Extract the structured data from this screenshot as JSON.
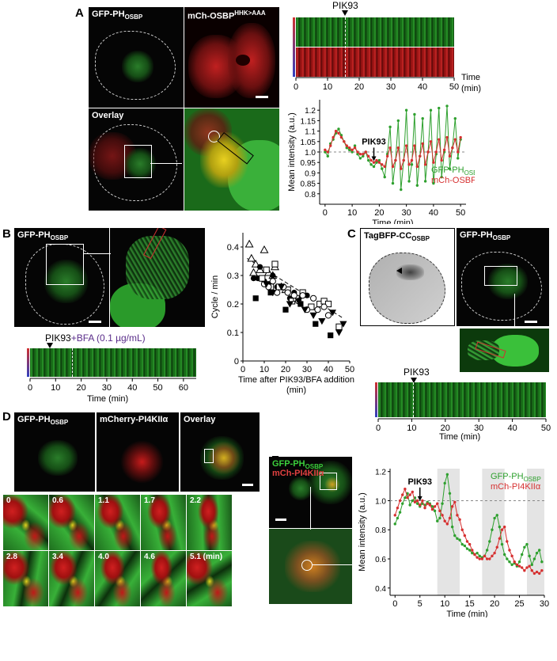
{
  "panels": {
    "A": {
      "letter": "A",
      "img_labels": {
        "gfp": "GFP-PH",
        "gfp_sub": "OSBP",
        "mch": "mCh-OSBP",
        "mch_sup": "HHK>AAA",
        "overlay": "Overlay"
      },
      "kymo_marker": "PIK93",
      "kymo_xlabel_1": "Time",
      "kymo_xlabel_2": "(min)",
      "kymo_ticks": [
        "0",
        "10",
        "20",
        "30",
        "40",
        "50"
      ]
    },
    "B": {
      "letter": "B",
      "img_label": "GFP-PH",
      "img_label_sub": "OSBP",
      "kymo_marker": "PIK93",
      "kymo_marker_extra": "+BFA (0.1 µg/mL)",
      "kymo_xlabel": "Time (min)",
      "kymo_ticks": [
        "0",
        "10",
        "20",
        "30",
        "40",
        "50",
        "60"
      ]
    },
    "C": {
      "letter": "C",
      "img_label_1": "TagBFP-CC",
      "img_label_1_sub": "OSBP",
      "img_label_2": "GFP-PH",
      "img_label_2_sub": "OSBP",
      "kymo_marker": "PIK93",
      "kymo_xlabel": "Time (min)",
      "kymo_ticks": [
        "0",
        "10",
        "20",
        "30",
        "40",
        "50"
      ]
    },
    "D": {
      "letter": "D",
      "img_labels": {
        "gfp": "GFP-PH",
        "gfp_sub": "OSBP",
        "mcherry": "mCherry-PI4KIIα",
        "overlay": "Overlay"
      },
      "timepoints": [
        "0",
        "0.6",
        "1.1",
        "1.7",
        "2.2",
        "2.8",
        "3.4",
        "4.0",
        "4.6",
        "5.1 (min)"
      ]
    },
    "E": {
      "letter": "E",
      "img_label_1": "GFP-PH",
      "img_label_1_sub": "OSBP",
      "img_label_2": "mCh-PI4KIIα"
    }
  },
  "chart_data": [
    {
      "id": "A",
      "type": "line",
      "xlabel": "Time (min)",
      "ylabel": "Mean intensity (a.u.)",
      "xlim": [
        -2,
        52
      ],
      "ylim": [
        0.75,
        1.25
      ],
      "xticks": [
        0,
        10,
        20,
        30,
        40,
        50
      ],
      "yticks": [
        0.8,
        0.85,
        0.9,
        0.95,
        1.0,
        1.05,
        1.1,
        1.15,
        1.2
      ],
      "ytick_labels": [
        "0.8",
        "0.85",
        "0.9",
        "0.95",
        "1.0",
        "1.05",
        "1.1",
        "1.15",
        "1.2"
      ],
      "annotation": "PIK93",
      "annotation_x": 18,
      "hline": 1.0,
      "series": [
        {
          "name": "GFP-PH",
          "name_sub": "OSBP",
          "color": "#2ea02e",
          "x": [
            0,
            1,
            2,
            3,
            4,
            5,
            6,
            7,
            8,
            9,
            10,
            11,
            12,
            13,
            14,
            15,
            16,
            17,
            18,
            19,
            20,
            21,
            22,
            23,
            24,
            25,
            26,
            27,
            28,
            29,
            30,
            31,
            32,
            33,
            34,
            35,
            36,
            37,
            38,
            39,
            40,
            41,
            42,
            43,
            44,
            45,
            46,
            47,
            48,
            49,
            50
          ],
          "values": [
            1.0,
            0.98,
            1.04,
            1.06,
            1.09,
            1.11,
            1.08,
            1.05,
            1.02,
            1.01,
            1.0,
            1.03,
            0.99,
            0.97,
            0.98,
            1.0,
            0.96,
            0.94,
            0.93,
            0.95,
            0.96,
            0.92,
            0.88,
            0.99,
            1.12,
            0.85,
            0.96,
            1.15,
            0.82,
            0.96,
            1.2,
            0.86,
            0.94,
            1.18,
            0.84,
            0.98,
            1.16,
            0.86,
            1.0,
            1.2,
            0.85,
            0.99,
            1.21,
            0.88,
            1.0,
            1.22,
            0.92,
            1.02,
            1.16,
            0.97,
            1.06
          ]
        },
        {
          "name": "mCh-OSBP",
          "name_sup": "HHK>AAA",
          "color": "#d63030",
          "x": [
            0,
            1,
            2,
            3,
            4,
            5,
            6,
            7,
            8,
            9,
            10,
            11,
            12,
            13,
            14,
            15,
            16,
            17,
            18,
            19,
            20,
            21,
            22,
            23,
            24,
            25,
            26,
            27,
            28,
            29,
            30,
            31,
            32,
            33,
            34,
            35,
            36,
            37,
            38,
            39,
            40,
            41,
            42,
            43,
            44,
            45,
            46,
            47,
            48,
            49,
            50
          ],
          "values": [
            1.01,
            1.0,
            1.03,
            1.07,
            1.1,
            1.09,
            1.07,
            1.05,
            1.03,
            1.02,
            1.01,
            1.02,
            1.0,
            0.99,
            0.99,
            1.0,
            0.98,
            0.96,
            0.95,
            0.96,
            0.95,
            0.94,
            0.93,
            0.98,
            1.02,
            0.93,
            0.96,
            1.02,
            0.92,
            0.96,
            1.03,
            0.94,
            0.96,
            1.03,
            0.93,
            0.98,
            1.04,
            0.94,
            1.0,
            1.05,
            0.95,
            1.0,
            1.06,
            0.96,
            1.01,
            1.07,
            0.98,
            1.02,
            1.06,
            1.0,
            1.07
          ]
        }
      ]
    },
    {
      "id": "B",
      "type": "scatter",
      "xlabel": "Time after PIK93/BFA addition (min)",
      "xlabel_1": "Time after PIK93/BFA addition",
      "xlabel_2": "(min)",
      "ylabel": "Cycle / min",
      "xlim": [
        0,
        50
      ],
      "ylim": [
        0,
        0.45
      ],
      "xticks": [
        0,
        10,
        20,
        30,
        40,
        50
      ],
      "yticks": [
        0,
        0.1,
        0.2,
        0.3,
        0.4
      ],
      "ytick_labels": [
        "0",
        "0.1",
        "0.2",
        "0.3",
        "0.4"
      ],
      "trendline": {
        "x": [
          2,
          47
        ],
        "y": [
          0.36,
          0.15
        ]
      },
      "series": [
        {
          "marker": "triangle-open",
          "x": [
            3,
            4,
            5,
            6,
            8,
            10,
            12,
            14,
            15,
            18,
            20
          ],
          "values": [
            0.41,
            0.36,
            0.31,
            0.34,
            0.32,
            0.39,
            0.31,
            0.3,
            0.33,
            0.26,
            0.25
          ]
        },
        {
          "marker": "circle-filled",
          "x": [
            5,
            7,
            8,
            10,
            12,
            14,
            16,
            18,
            22,
            24,
            26,
            30
          ],
          "values": [
            0.29,
            0.29,
            0.33,
            0.28,
            0.27,
            0.3,
            0.26,
            0.26,
            0.22,
            0.24,
            0.22,
            0.23
          ]
        },
        {
          "marker": "square-open",
          "x": [
            9,
            11,
            13,
            15,
            17,
            21,
            23,
            25,
            28,
            32,
            36,
            38,
            40,
            45
          ],
          "values": [
            0.29,
            0.32,
            0.26,
            0.34,
            0.26,
            0.25,
            0.21,
            0.22,
            0.24,
            0.19,
            0.2,
            0.21,
            0.2,
            0.12
          ]
        },
        {
          "marker": "circle-open",
          "x": [
            10,
            12,
            14,
            16,
            19,
            21,
            24,
            26,
            28,
            30,
            33,
            35,
            38,
            40
          ],
          "values": [
            0.27,
            0.26,
            0.28,
            0.24,
            0.26,
            0.24,
            0.23,
            0.21,
            0.23,
            0.18,
            0.22,
            0.18,
            0.19,
            0.16
          ]
        },
        {
          "marker": "square-filled",
          "x": [
            6,
            13,
            20,
            27,
            34,
            41
          ],
          "values": [
            0.22,
            0.24,
            0.18,
            0.2,
            0.13,
            0.09
          ]
        },
        {
          "marker": "triangle-down-filled",
          "x": [
            11,
            14,
            18,
            22,
            26,
            29,
            33,
            37,
            42,
            45,
            47
          ],
          "values": [
            0.27,
            0.24,
            0.26,
            0.2,
            0.21,
            0.18,
            0.16,
            0.14,
            0.17,
            0.1,
            0.13
          ]
        }
      ]
    },
    {
      "id": "E",
      "type": "line",
      "xlabel": "Time (min)",
      "ylabel": "Mean intensity (a.u.)",
      "xlim": [
        -1,
        30
      ],
      "ylim": [
        0.35,
        1.22
      ],
      "xticks": [
        0,
        5,
        10,
        15,
        20,
        25,
        30
      ],
      "yticks": [
        0.4,
        0.6,
        0.8,
        1.0,
        1.2
      ],
      "ytick_labels": [
        "0.4",
        "0.6",
        "0.8",
        "1.0",
        "1.2"
      ],
      "annotation": "PIK93",
      "annotation_x": 5,
      "hline": 1.0,
      "shaded": [
        [
          8.5,
          13
        ],
        [
          17.5,
          22
        ],
        [
          26.5,
          30
        ]
      ],
      "series": [
        {
          "name": "GFP-PH",
          "name_sub": "OSBP",
          "color": "#2ea02e",
          "x": [
            0,
            0.5,
            1,
            1.5,
            2,
            2.5,
            3,
            3.5,
            4,
            4.5,
            5,
            5.5,
            6,
            6.5,
            7,
            7.5,
            8,
            8.5,
            9,
            9.5,
            10,
            10.5,
            11,
            11.5,
            12,
            12.5,
            13,
            13.5,
            14,
            14.5,
            15,
            15.5,
            16,
            16.5,
            17,
            17.5,
            18,
            18.5,
            19,
            19.5,
            20,
            20.5,
            21,
            21.5,
            22,
            22.5,
            23,
            23.5,
            24,
            24.5,
            25,
            25.5,
            26,
            26.5,
            27,
            27.5,
            28,
            28.5,
            29,
            29.5
          ],
          "values": [
            0.84,
            0.88,
            0.92,
            0.98,
            1.02,
            1.05,
            0.97,
            1.0,
            1.02,
            0.98,
            0.96,
            0.98,
            0.97,
            0.99,
            0.98,
            0.96,
            0.93,
            0.86,
            0.88,
            0.98,
            1.12,
            1.18,
            1.05,
            0.82,
            0.76,
            0.74,
            0.73,
            0.7,
            0.69,
            0.67,
            0.66,
            0.64,
            0.63,
            0.64,
            0.62,
            0.61,
            0.62,
            0.66,
            0.72,
            0.8,
            0.88,
            0.9,
            0.82,
            0.7,
            0.63,
            0.6,
            0.58,
            0.56,
            0.57,
            0.55,
            0.58,
            0.63,
            0.68,
            0.7,
            0.62,
            0.56,
            0.6,
            0.64,
            0.66,
            0.58
          ]
        },
        {
          "name": "mCh-PI4KIIα",
          "color": "#d63030",
          "x": [
            0,
            0.5,
            1,
            1.5,
            2,
            2.5,
            3,
            3.5,
            4,
            4.5,
            5,
            5.5,
            6,
            6.5,
            7,
            7.5,
            8,
            8.5,
            9,
            9.5,
            10,
            10.5,
            11,
            11.5,
            12,
            12.5,
            13,
            13.5,
            14,
            14.5,
            15,
            15.5,
            16,
            16.5,
            17,
            17.5,
            18,
            18.5,
            19,
            19.5,
            20,
            20.5,
            21,
            21.5,
            22,
            22.5,
            23,
            23.5,
            24,
            24.5,
            25,
            25.5,
            26,
            26.5,
            27,
            27.5,
            28,
            28.5,
            29,
            29.5
          ],
          "values": [
            0.9,
            0.95,
            1.0,
            1.04,
            1.08,
            1.02,
            1.04,
            1.06,
            0.99,
            1.0,
            0.97,
            1.0,
            0.95,
            0.98,
            0.97,
            0.94,
            0.96,
            0.98,
            0.93,
            0.9,
            0.86,
            0.84,
            0.88,
            0.96,
            0.99,
            0.9,
            0.87,
            0.8,
            0.76,
            0.72,
            0.7,
            0.66,
            0.63,
            0.61,
            0.6,
            0.6,
            0.62,
            0.6,
            0.6,
            0.62,
            0.64,
            0.68,
            0.74,
            0.8,
            0.82,
            0.72,
            0.66,
            0.62,
            0.58,
            0.56,
            0.55,
            0.54,
            0.52,
            0.54,
            0.55,
            0.52,
            0.5,
            0.51,
            0.5,
            0.52
          ]
        }
      ]
    }
  ]
}
